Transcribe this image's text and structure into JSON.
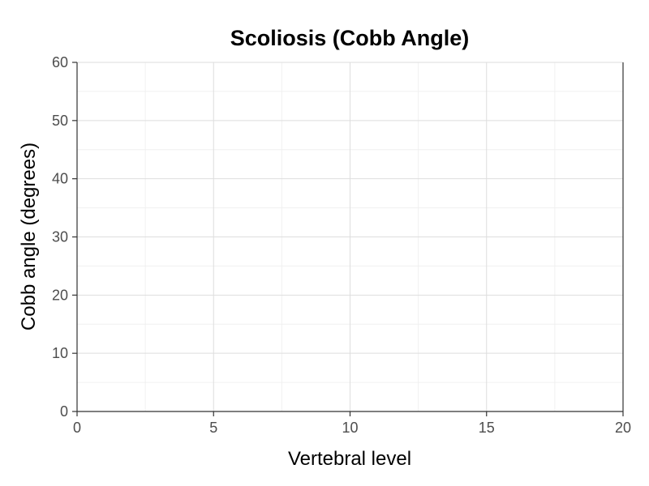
{
  "chart_data": {
    "type": "line",
    "title": "Scoliosis (Cobb Angle)",
    "xlabel": "Vertebral level",
    "ylabel": "Cobb angle (degrees)",
    "xlim": [
      0,
      20
    ],
    "ylim": [
      0,
      60
    ],
    "x_ticks": [
      0,
      5,
      10,
      15,
      20
    ],
    "y_ticks": [
      0,
      10,
      20,
      30,
      40,
      50,
      60
    ],
    "grid": true,
    "series": []
  }
}
